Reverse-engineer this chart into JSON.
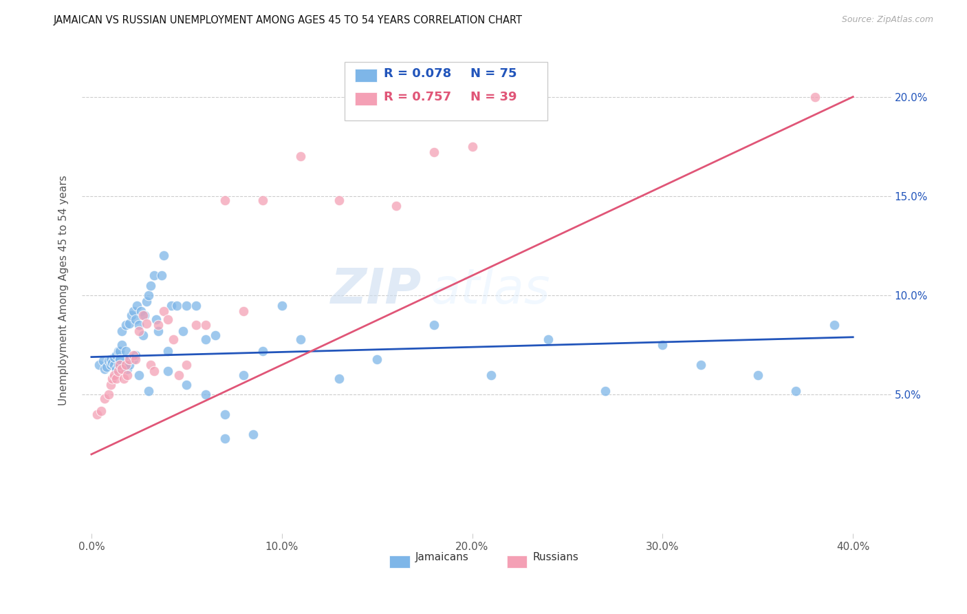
{
  "title": "JAMAICAN VS RUSSIAN UNEMPLOYMENT AMONG AGES 45 TO 54 YEARS CORRELATION CHART",
  "source": "Source: ZipAtlas.com",
  "ylabel": "Unemployment Among Ages 45 to 54 years",
  "xlabel_ticks": [
    "0.0%",
    "10.0%",
    "20.0%",
    "30.0%",
    "40.0%"
  ],
  "xlabel_vals": [
    0.0,
    0.1,
    0.2,
    0.3,
    0.4
  ],
  "ylabel_ticks_right": [
    "5.0%",
    "10.0%",
    "15.0%",
    "20.0%"
  ],
  "ylabel_vals_right": [
    0.05,
    0.1,
    0.15,
    0.2
  ],
  "ylim": [
    -0.02,
    0.225
  ],
  "xlim": [
    -0.005,
    0.42
  ],
  "blue_R": "R = 0.078",
  "blue_N": "N = 75",
  "pink_R": "R = 0.757",
  "pink_N": "N = 39",
  "blue_color": "#7eb6e8",
  "pink_color": "#f4a0b5",
  "blue_line_color": "#2255bb",
  "pink_line_color": "#e05577",
  "legend_label_blue": "Jamaicans",
  "legend_label_pink": "Russians",
  "watermark_zip": "ZIP",
  "watermark_atlas": "atlas",
  "title_fontsize": 11,
  "blue_scatter_x": [
    0.004,
    0.006,
    0.007,
    0.008,
    0.009,
    0.01,
    0.01,
    0.011,
    0.012,
    0.012,
    0.013,
    0.013,
    0.014,
    0.014,
    0.015,
    0.015,
    0.016,
    0.016,
    0.017,
    0.018,
    0.018,
    0.019,
    0.02,
    0.02,
    0.021,
    0.022,
    0.022,
    0.023,
    0.023,
    0.024,
    0.025,
    0.026,
    0.027,
    0.028,
    0.029,
    0.03,
    0.031,
    0.033,
    0.034,
    0.035,
    0.037,
    0.038,
    0.04,
    0.042,
    0.045,
    0.048,
    0.05,
    0.055,
    0.06,
    0.065,
    0.07,
    0.08,
    0.09,
    0.1,
    0.11,
    0.13,
    0.15,
    0.18,
    0.21,
    0.24,
    0.27,
    0.3,
    0.32,
    0.35,
    0.37,
    0.39,
    0.015,
    0.02,
    0.025,
    0.03,
    0.04,
    0.05,
    0.06,
    0.07,
    0.085
  ],
  "blue_scatter_y": [
    0.065,
    0.067,
    0.063,
    0.064,
    0.067,
    0.065,
    0.068,
    0.066,
    0.065,
    0.069,
    0.063,
    0.07,
    0.072,
    0.065,
    0.072,
    0.068,
    0.075,
    0.082,
    0.064,
    0.072,
    0.085,
    0.063,
    0.086,
    0.068,
    0.09,
    0.092,
    0.068,
    0.088,
    0.07,
    0.095,
    0.085,
    0.092,
    0.08,
    0.09,
    0.097,
    0.1,
    0.105,
    0.11,
    0.088,
    0.082,
    0.11,
    0.12,
    0.072,
    0.095,
    0.095,
    0.082,
    0.095,
    0.095,
    0.078,
    0.08,
    0.04,
    0.06,
    0.072,
    0.095,
    0.078,
    0.058,
    0.068,
    0.085,
    0.06,
    0.078,
    0.052,
    0.075,
    0.065,
    0.06,
    0.052,
    0.085,
    0.068,
    0.065,
    0.06,
    0.052,
    0.062,
    0.055,
    0.05,
    0.028,
    0.03
  ],
  "pink_scatter_x": [
    0.003,
    0.005,
    0.007,
    0.009,
    0.01,
    0.011,
    0.012,
    0.013,
    0.014,
    0.015,
    0.016,
    0.017,
    0.018,
    0.019,
    0.02,
    0.022,
    0.023,
    0.025,
    0.027,
    0.029,
    0.031,
    0.033,
    0.035,
    0.038,
    0.04,
    0.043,
    0.046,
    0.05,
    0.055,
    0.06,
    0.07,
    0.08,
    0.09,
    0.11,
    0.13,
    0.16,
    0.18,
    0.2,
    0.38
  ],
  "pink_scatter_y": [
    0.04,
    0.042,
    0.048,
    0.05,
    0.055,
    0.058,
    0.06,
    0.058,
    0.062,
    0.065,
    0.063,
    0.058,
    0.065,
    0.06,
    0.068,
    0.07,
    0.068,
    0.082,
    0.09,
    0.086,
    0.065,
    0.062,
    0.085,
    0.092,
    0.088,
    0.078,
    0.06,
    0.065,
    0.085,
    0.085,
    0.148,
    0.092,
    0.148,
    0.17,
    0.148,
    0.145,
    0.172,
    0.175,
    0.2
  ],
  "blue_line_x": [
    0.0,
    0.4
  ],
  "blue_line_y": [
    0.069,
    0.079
  ],
  "pink_line_x": [
    0.0,
    0.4
  ],
  "pink_line_y": [
    0.02,
    0.2
  ]
}
